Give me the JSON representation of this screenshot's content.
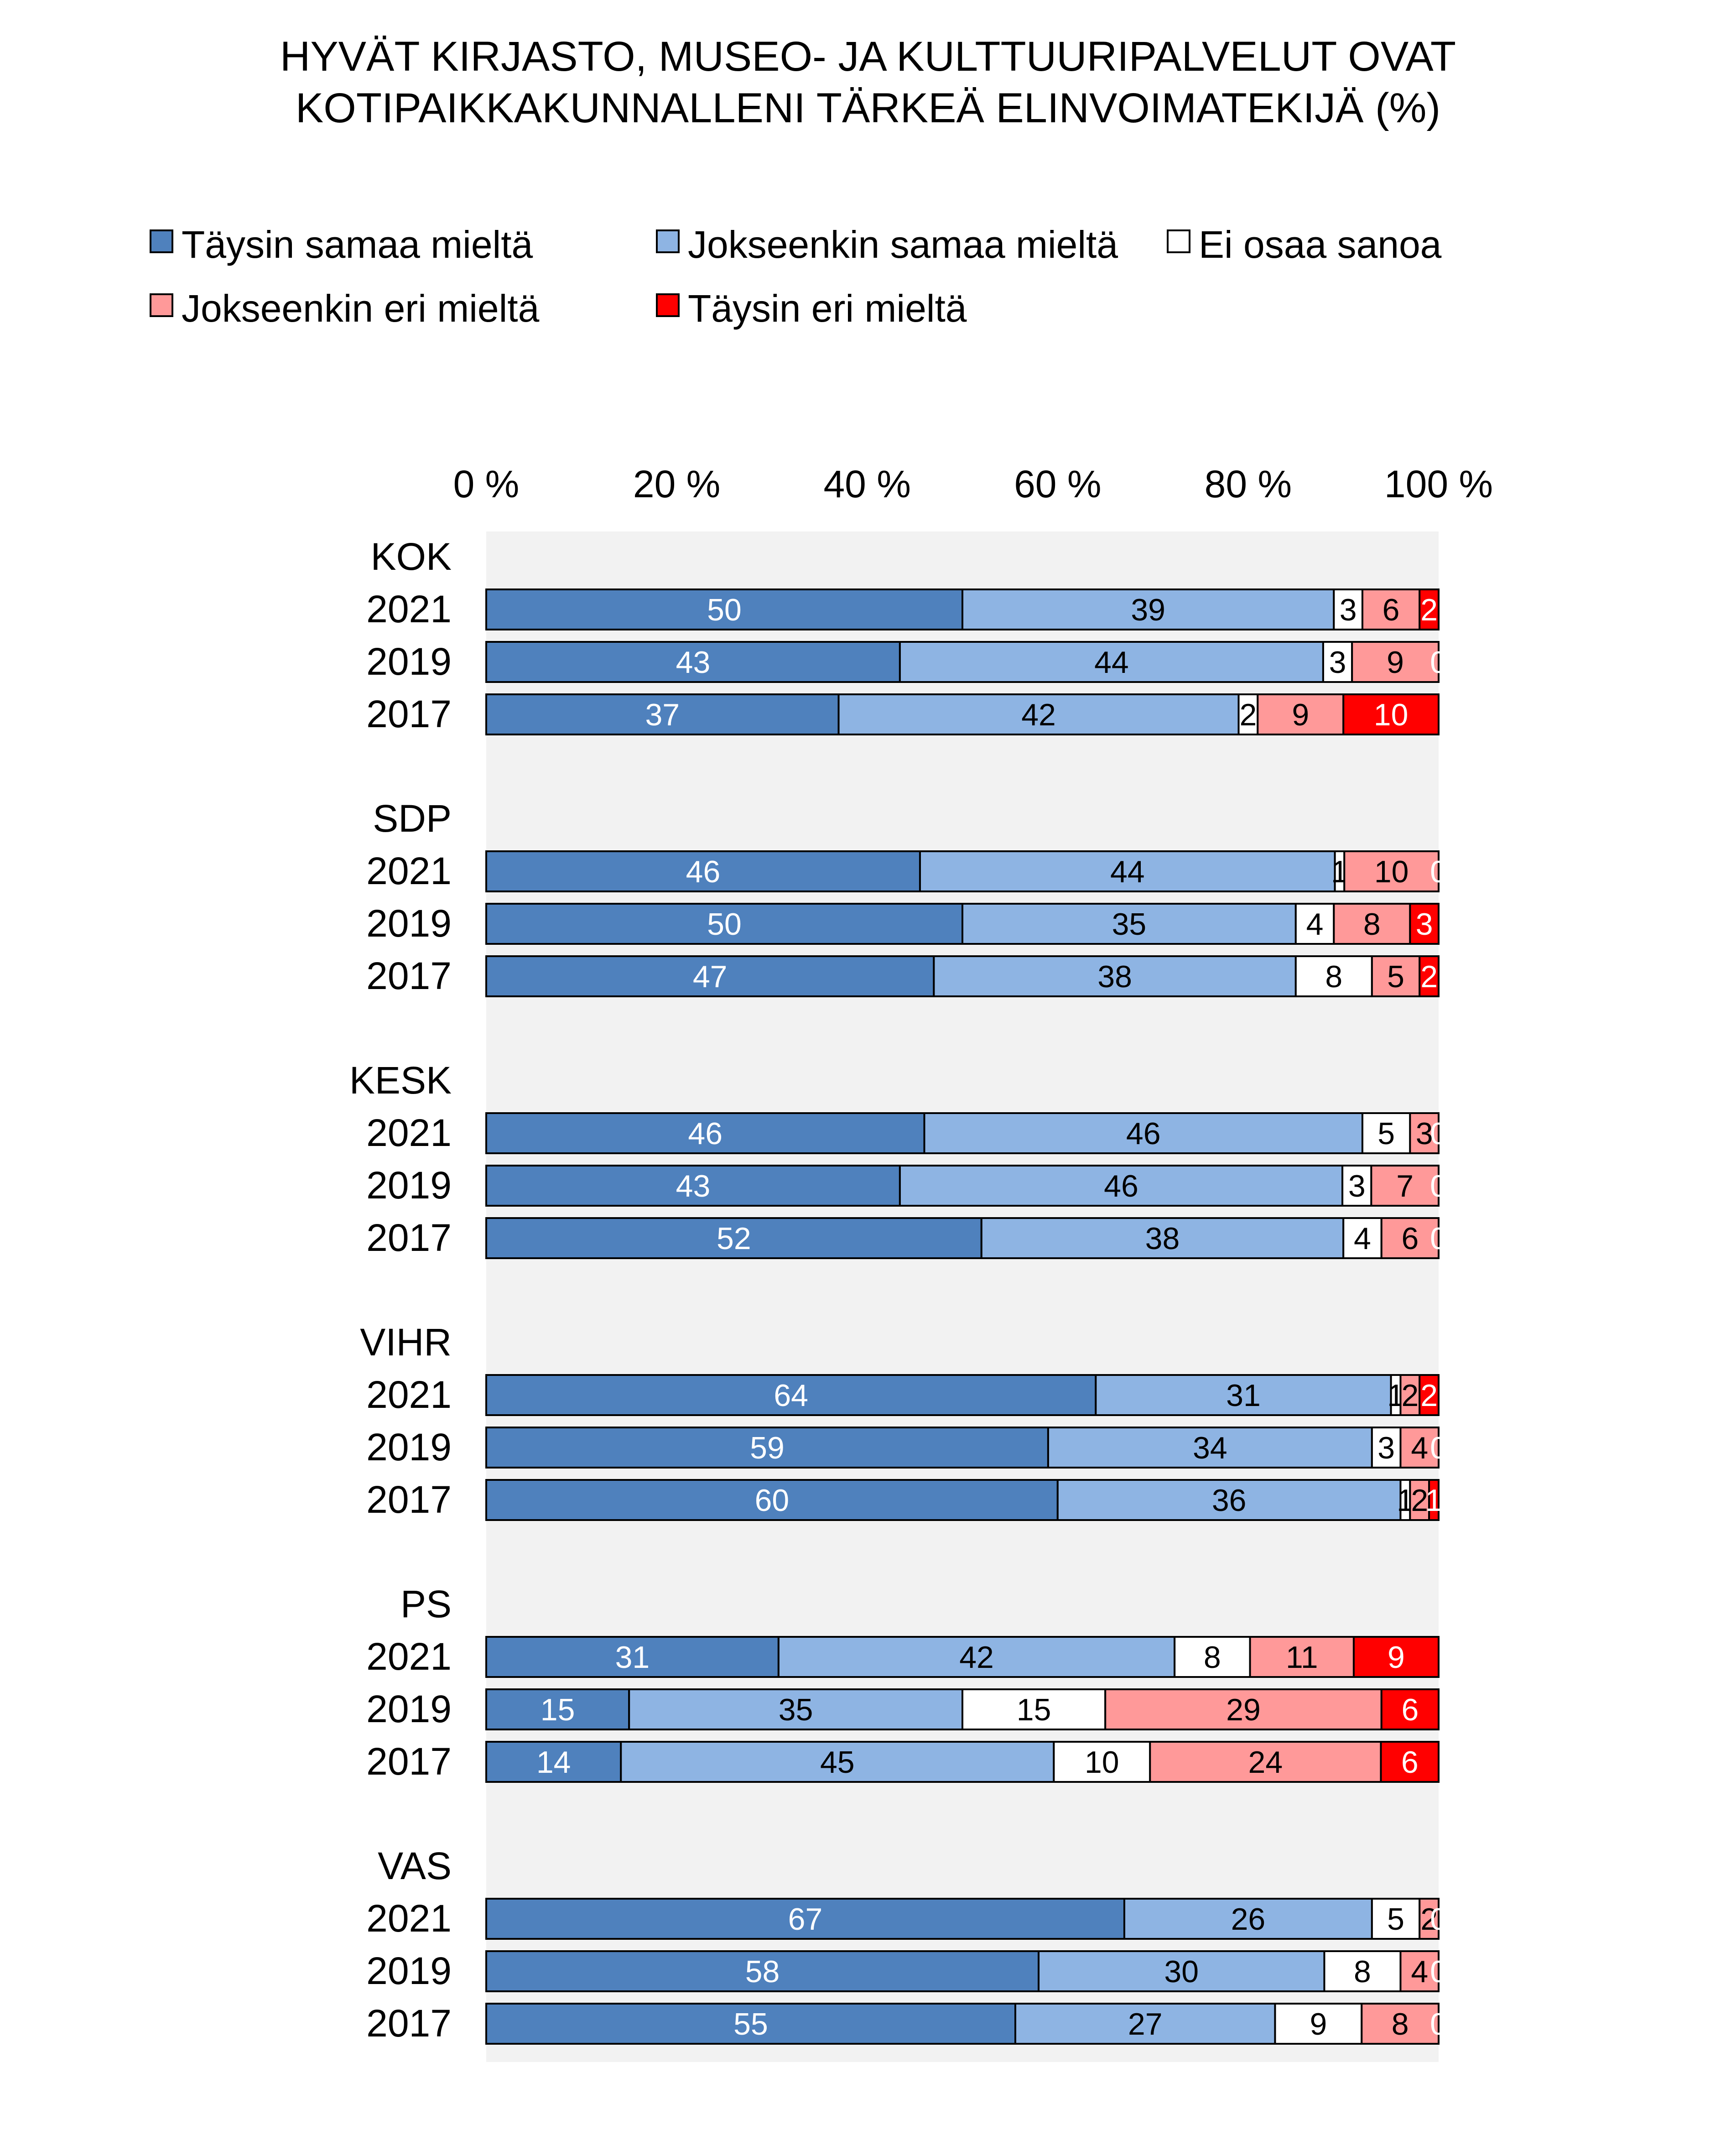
{
  "colors": {
    "taysin_samaa": "#4f81bd",
    "jokseenkin_samaa": "#8eb4e3",
    "ei_osaa": "#ffffff",
    "jokseenkin_eri": "#ff9999",
    "taysin_eri": "#ff0000",
    "plot_bg": "#f2f2f2"
  },
  "chart_data": {
    "type": "bar",
    "orientation": "horizontal",
    "stacked": "percent",
    "title": "HYVÄT KIRJASTO, MUSEO- JA KULTTUURIPALVELUT OVAT KOTIPAIKKAKUNNALLENI TÄRKEÄ ELINVOIMATEKIJÄ (%)",
    "title_lines": [
      "HYVÄT KIRJASTO, MUSEO- JA KULTTUURIPALVELUT OVAT",
      "KOTIPAIKKAKUNNALLENI TÄRKEÄ ELINVOIMATEKIJÄ (%)"
    ],
    "xlim": [
      0,
      100
    ],
    "xticks": [
      "0 %",
      "20 %",
      "40 %",
      "60 %",
      "80 %",
      "100 %"
    ],
    "legend_position": "top",
    "series": [
      {
        "name": "Täysin samaa mieltä",
        "color": "#4f81bd"
      },
      {
        "name": "Jokseenkin samaa mieltä",
        "color": "#8eb4e3"
      },
      {
        "name": "Ei osaa sanoa",
        "color": "#ffffff"
      },
      {
        "name": "Jokseenkin eri mieltä",
        "color": "#ff9999"
      },
      {
        "name": "Täysin eri mieltä",
        "color": "#ff0000"
      }
    ],
    "groups": [
      {
        "name": "KOK",
        "rows": [
          {
            "year": "2021",
            "values": [
              50,
              39,
              3,
              6,
              2
            ]
          },
          {
            "year": "2019",
            "values": [
              43,
              44,
              3,
              9,
              0
            ]
          },
          {
            "year": "2017",
            "values": [
              37,
              42,
              2,
              9,
              10
            ]
          }
        ]
      },
      {
        "name": "SDP",
        "rows": [
          {
            "year": "2021",
            "values": [
              46,
              44,
              1,
              10,
              0
            ]
          },
          {
            "year": "2019",
            "values": [
              50,
              35,
              4,
              8,
              3
            ]
          },
          {
            "year": "2017",
            "values": [
              47,
              38,
              8,
              5,
              2
            ]
          }
        ]
      },
      {
        "name": "KESK",
        "rows": [
          {
            "year": "2021",
            "values": [
              46,
              46,
              5,
              3,
              0
            ]
          },
          {
            "year": "2019",
            "values": [
              43,
              46,
              3,
              7,
              0
            ]
          },
          {
            "year": "2017",
            "values": [
              52,
              38,
              4,
              6,
              0
            ]
          }
        ]
      },
      {
        "name": "VIHR",
        "rows": [
          {
            "year": "2021",
            "values": [
              64,
              31,
              1,
              2,
              2
            ]
          },
          {
            "year": "2019",
            "values": [
              59,
              34,
              3,
              4,
              0
            ]
          },
          {
            "year": "2017",
            "values": [
              60,
              36,
              1,
              2,
              1
            ]
          }
        ]
      },
      {
        "name": "PS",
        "rows": [
          {
            "year": "2021",
            "values": [
              31,
              42,
              8,
              11,
              9
            ]
          },
          {
            "year": "2019",
            "values": [
              15,
              35,
              15,
              29,
              6
            ]
          },
          {
            "year": "2017",
            "values": [
              14,
              45,
              10,
              24,
              6
            ]
          }
        ]
      },
      {
        "name": "VAS",
        "rows": [
          {
            "year": "2021",
            "values": [
              67,
              26,
              5,
              2,
              0
            ]
          },
          {
            "year": "2019",
            "values": [
              58,
              30,
              8,
              4,
              0
            ]
          },
          {
            "year": "2017",
            "values": [
              55,
              27,
              9,
              8,
              0
            ]
          }
        ]
      }
    ]
  }
}
